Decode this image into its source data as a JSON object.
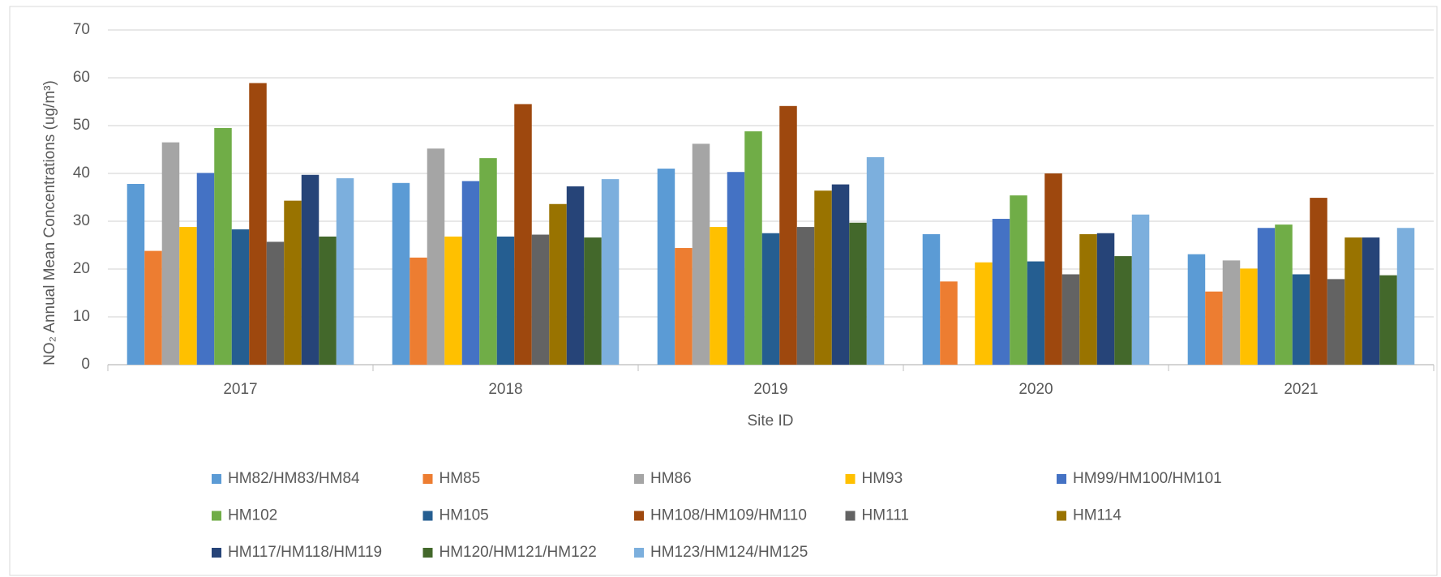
{
  "chart_data": {
    "type": "bar",
    "y_label": "NO₂ Annual Mean Concentrations (ug/m³)",
    "x_label": "Site ID",
    "categories": [
      "2017",
      "2018",
      "2019",
      "2020",
      "2021"
    ],
    "ylim": [
      0,
      70
    ],
    "yticks": [
      0,
      10,
      20,
      30,
      40,
      50,
      60,
      70
    ],
    "grid": true,
    "legend": "bottom",
    "series": [
      {
        "name": "HM82/HM83/HM84",
        "color": "#5b9bd5",
        "values": [
          37.8,
          38.0,
          41.0,
          27.3,
          23.1
        ]
      },
      {
        "name": "HM85",
        "color": "#ed7d31",
        "values": [
          23.8,
          22.4,
          24.4,
          17.4,
          15.3
        ]
      },
      {
        "name": "HM86",
        "color": "#a5a5a5",
        "values": [
          46.5,
          45.2,
          46.2,
          null,
          21.8
        ]
      },
      {
        "name": "HM93",
        "color": "#ffc000",
        "values": [
          28.8,
          26.8,
          28.8,
          21.4,
          20.1
        ]
      },
      {
        "name": "HM99/HM100/HM101",
        "color": "#4472c4",
        "values": [
          40.1,
          38.4,
          40.3,
          30.5,
          28.6
        ]
      },
      {
        "name": "HM102",
        "color": "#70ad47",
        "values": [
          49.5,
          43.2,
          48.8,
          35.4,
          29.3
        ]
      },
      {
        "name": "HM105",
        "color": "#255e91",
        "values": [
          28.3,
          26.8,
          27.5,
          21.6,
          18.9
        ]
      },
      {
        "name": "HM108/HM109/HM110",
        "color": "#9e480e",
        "values": [
          58.9,
          54.5,
          54.1,
          40.0,
          34.9
        ]
      },
      {
        "name": "HM111",
        "color": "#636363",
        "values": [
          25.7,
          27.2,
          28.8,
          18.9,
          17.9
        ]
      },
      {
        "name": "HM114",
        "color": "#997300",
        "values": [
          34.3,
          33.6,
          36.4,
          27.3,
          26.6
        ]
      },
      {
        "name": "HM117/HM118/HM119",
        "color": "#264478",
        "values": [
          39.7,
          37.3,
          37.7,
          27.5,
          26.6
        ]
      },
      {
        "name": "HM120/HM121/HM122",
        "color": "#43682b",
        "values": [
          26.8,
          26.6,
          29.7,
          22.7,
          18.7
        ]
      },
      {
        "name": "HM123/HM124/HM125",
        "color": "#7cafdd",
        "values": [
          39.0,
          38.8,
          43.4,
          31.4,
          28.6
        ]
      }
    ]
  }
}
